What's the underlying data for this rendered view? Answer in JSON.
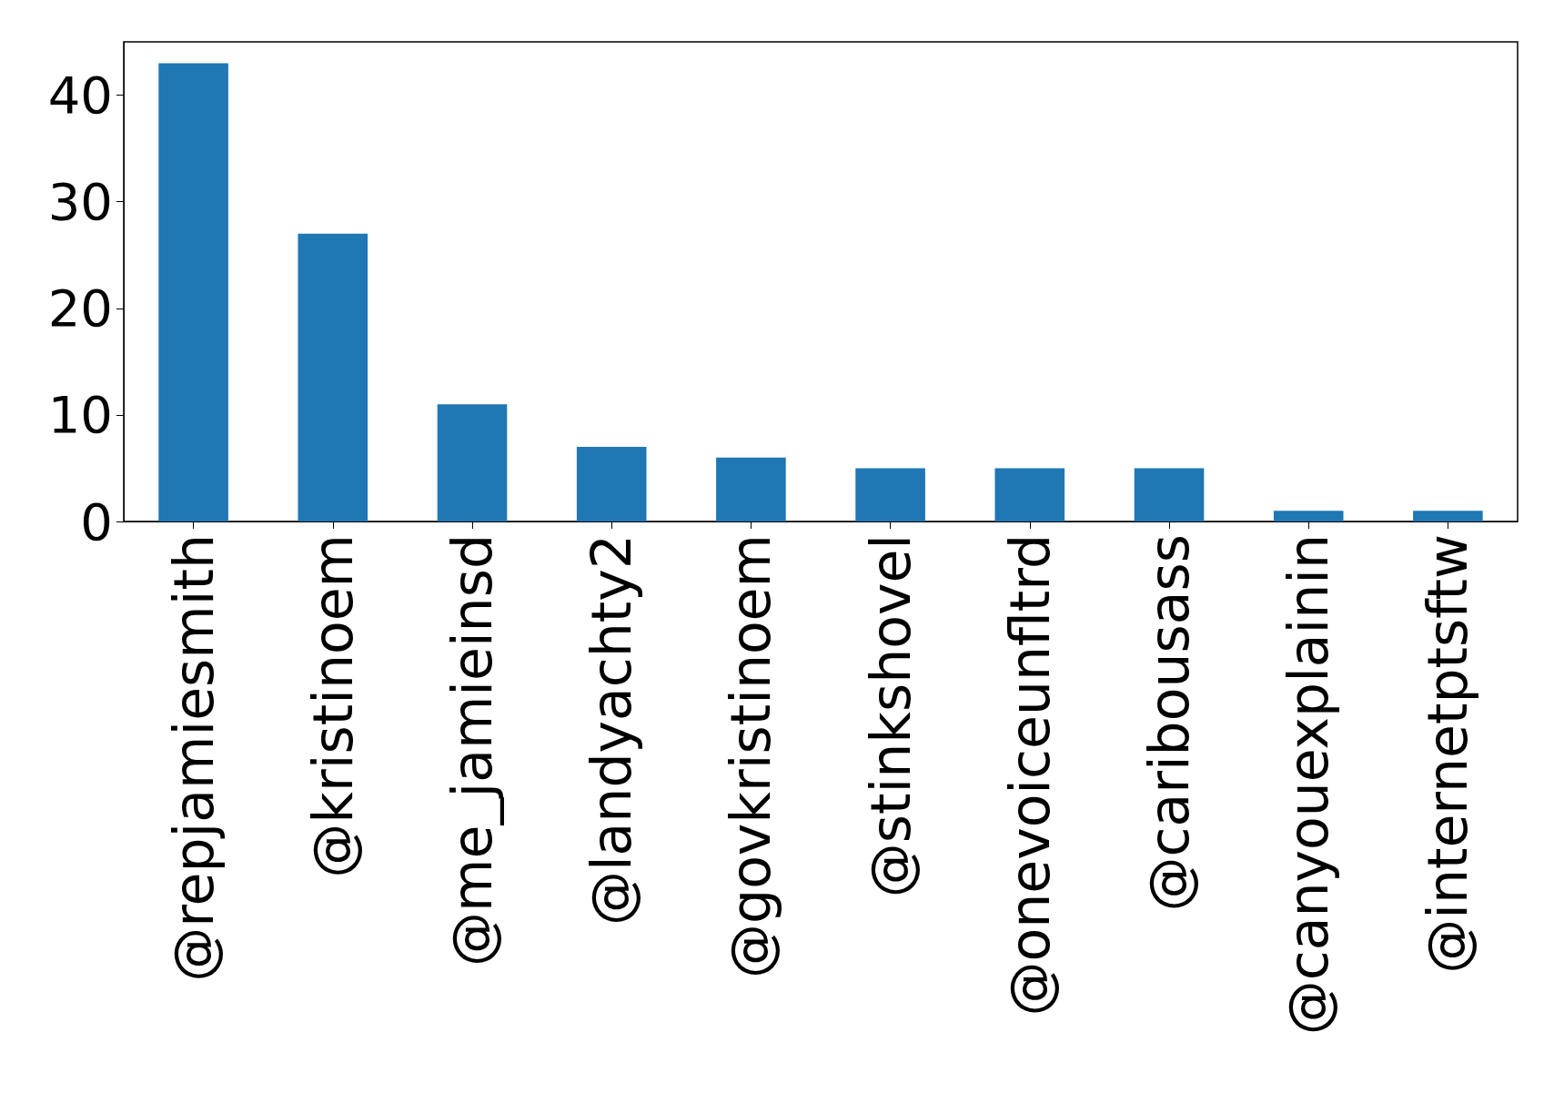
{
  "chart_data": {
    "type": "bar",
    "categories": [
      "@repjamiesmith",
      "@kristinoem",
      "@me_jamieinsd",
      "@landyachty2",
      "@govkristinoem",
      "@stinkshovel",
      "@onevoiceunfltrd",
      "@caribousass",
      "@canyouexplainin",
      "@internetptsftw"
    ],
    "values": [
      43,
      27,
      11,
      7,
      6,
      5,
      5,
      5,
      1,
      1
    ],
    "color": "#1f77b4",
    "ylim": [
      0,
      45
    ],
    "yticks": [
      0,
      10,
      20,
      30,
      40
    ],
    "grid": false
  }
}
